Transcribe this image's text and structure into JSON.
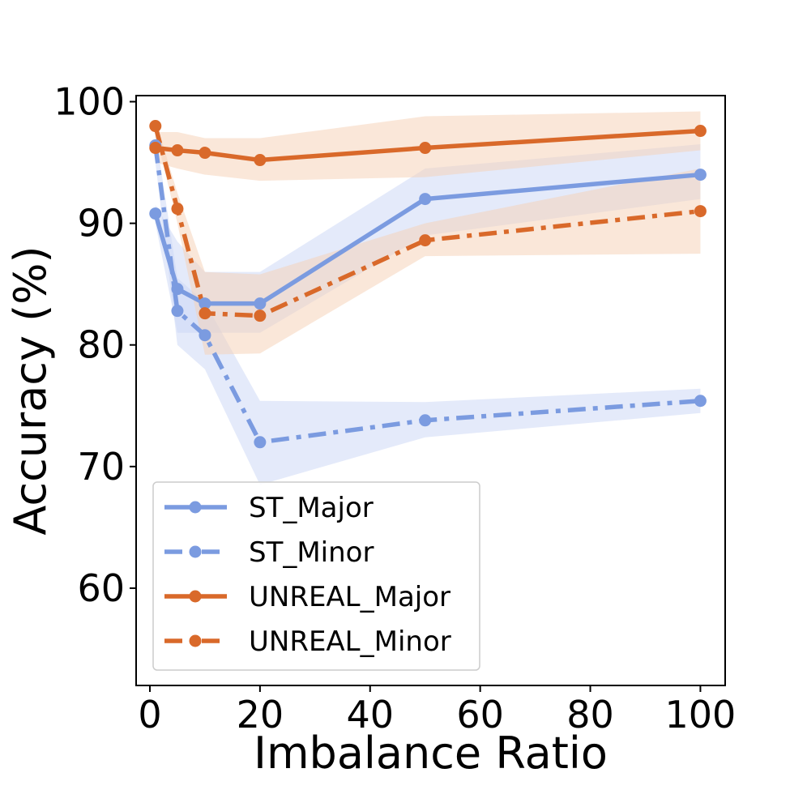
{
  "chart_data": {
    "type": "line",
    "title": "",
    "xlabel": "Imbalance Ratio",
    "ylabel": "Accuracy (%)",
    "xlim": [
      -2.5,
      104.5
    ],
    "ylim": [
      52,
      100.5
    ],
    "xticks": [
      0,
      20,
      40,
      60,
      80,
      100
    ],
    "yticks": [
      60,
      70,
      80,
      90,
      100
    ],
    "grid": false,
    "legend_position": "lower-left",
    "x": [
      1,
      5,
      10,
      20,
      50,
      100
    ],
    "series": [
      {
        "name": "ST_Major",
        "color": "#7b9be0",
        "band_color": "#c9d5f5",
        "dash": "solid",
        "values": [
          90.8,
          84.6,
          83.4,
          83.4,
          92.0,
          94.0
        ],
        "lower": [
          90.0,
          81.0,
          81.0,
          81.0,
          89.0,
          92.0
        ],
        "upper": [
          91.5,
          88.5,
          86.0,
          86.0,
          94.5,
          96.5
        ]
      },
      {
        "name": "ST_Minor",
        "color": "#7b9be0",
        "band_color": "#c9d5f5",
        "dash": "dashdot",
        "values": [
          96.4,
          82.8,
          80.8,
          72.0,
          73.8,
          75.4
        ],
        "lower": [
          95.0,
          80.0,
          78.0,
          68.5,
          72.4,
          74.4
        ],
        "upper": [
          97.5,
          85.5,
          83.5,
          75.4,
          75.3,
          76.4
        ]
      },
      {
        "name": "UNREAL_Major",
        "color": "#d9692a",
        "band_color": "#f5cfb3",
        "dash": "solid",
        "values": [
          96.2,
          96.0,
          95.8,
          95.2,
          96.2,
          97.6
        ],
        "lower": [
          95.0,
          94.5,
          94.0,
          93.5,
          93.8,
          96.0
        ],
        "upper": [
          97.5,
          97.5,
          97.0,
          97.0,
          98.8,
          99.2
        ]
      },
      {
        "name": "UNREAL_Minor",
        "color": "#d9692a",
        "band_color": "#f5cfb3",
        "dash": "dashdot",
        "values": [
          98.0,
          91.2,
          82.6,
          82.4,
          88.6,
          91.0
        ],
        "lower": [
          97.5,
          90.0,
          79.2,
          79.3,
          87.3,
          87.5
        ],
        "upper": [
          98.5,
          92.5,
          86.0,
          85.8,
          90.0,
          94.5
        ]
      }
    ]
  }
}
